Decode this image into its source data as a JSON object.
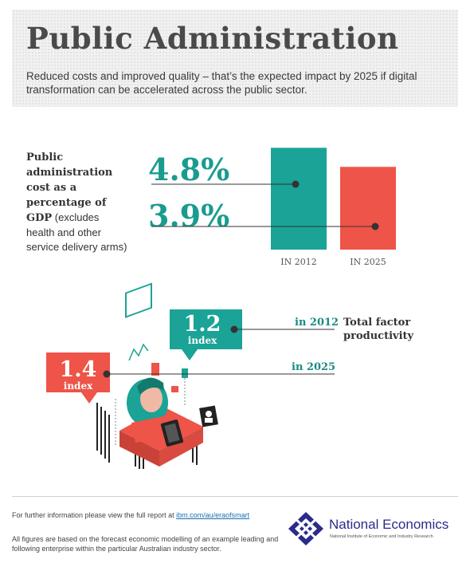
{
  "header": {
    "title": "Public Administration",
    "subtitle": "Reduced costs and improved quality – that’s the expected impact by 2025 if digital transformation can be accelerated across the public sector."
  },
  "cost_section": {
    "label_bold": "Public administration cost as a percentage of GDP",
    "label_rest": " (excludes health and other service delivery arms)",
    "value_2012": "4.8%",
    "value_2025": "3.9%"
  },
  "productivity_section": {
    "callout_2012_value": "1.2",
    "callout_2012_unit": "index",
    "callout_2025_value": "1.4",
    "callout_2025_unit": "index",
    "year_2012": "in 2012",
    "year_2025": "in 2025",
    "label": "Total factor productivity"
  },
  "footer": {
    "line1_prefix": "For further information please view the full report at ",
    "line1_link": "ibm.com/au/eraofsmart",
    "line2": "All figures are based on the forecast economic modelling of an example leading and following enterprise within the particular Australian industry sector.",
    "logo_name": "National Economics",
    "logo_sub": "National Institute of Economic and Industry Research"
  },
  "colors": {
    "teal": "#1aa396",
    "red": "#ee5448",
    "dark_text": "#4a4a4a"
  },
  "chart_data": [
    {
      "type": "bar",
      "categories": [
        "IN 2012",
        "IN 2025"
      ],
      "values": [
        4.8,
        3.9
      ],
      "value_labels": [
        "4.8%",
        "3.9%"
      ],
      "colors": [
        "#1aa396",
        "#ee5448"
      ],
      "ylabel": "Public administration cost as a percentage of GDP"
    },
    {
      "type": "bar",
      "categories": [
        "in 2012",
        "in 2025"
      ],
      "values": [
        1.2,
        1.4
      ],
      "value_labels": [
        "1.2 index",
        "1.4 index"
      ],
      "colors": [
        "#1aa396",
        "#ee5448"
      ],
      "ylabel": "Total factor productivity"
    }
  ]
}
